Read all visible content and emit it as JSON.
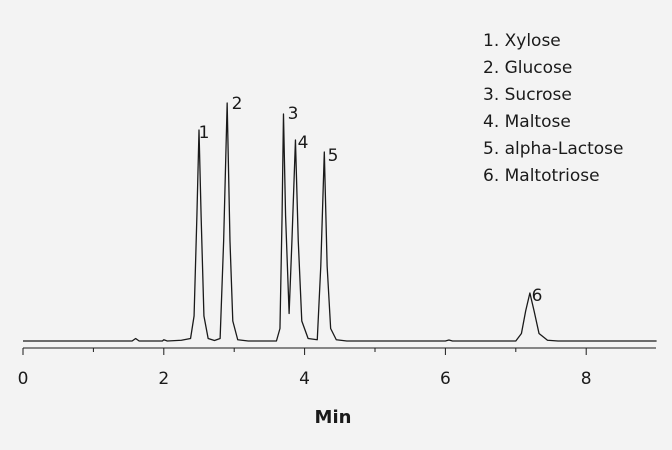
{
  "chart_data": {
    "type": "line",
    "xlabel": "Min",
    "x": [
      0,
      1.55,
      1.6,
      1.65,
      1.98,
      2.0,
      2.05,
      2.25,
      2.38,
      2.43,
      2.47,
      2.5,
      2.53,
      2.57,
      2.63,
      2.72,
      2.8,
      2.85,
      2.9,
      2.94,
      2.98,
      3.05,
      3.2,
      3.6,
      3.65,
      3.68,
      3.7,
      3.73,
      3.78,
      3.82,
      3.87,
      3.91,
      3.96,
      4.05,
      4.18,
      4.23,
      4.28,
      4.32,
      4.37,
      4.45,
      4.6,
      6.0,
      6.05,
      6.1,
      7.0,
      7.08,
      7.14,
      7.2,
      7.26,
      7.33,
      7.45,
      7.6,
      9.0
    ],
    "series": [
      {
        "color": "#1a1a1a",
        "values": [
          0,
          0,
          1,
          0,
          0,
          0.5,
          0,
          0.3,
          1,
          10,
          50,
          84.4,
          50,
          10,
          1,
          0.2,
          1,
          40,
          95.2,
          40,
          8,
          0.5,
          0,
          0,
          5,
          50,
          90.8,
          50,
          11,
          40,
          80.4,
          40,
          8,
          1,
          0.5,
          30,
          75.6,
          30,
          5,
          0.5,
          0,
          0,
          0.4,
          0,
          0,
          3,
          12,
          19.2,
          12,
          3,
          0.3,
          0,
          0
        ]
      }
    ],
    "xlim": [
      0,
      9
    ],
    "xticks": [
      0,
      2,
      4,
      6,
      8
    ],
    "xminorticks": [
      1,
      3,
      5,
      7
    ],
    "ylim": [
      0,
      100
    ],
    "peak_labels": [
      "1",
      "2",
      "3",
      "4",
      "5",
      "6"
    ],
    "legend": [
      "1. Xylose",
      "2. Glucose",
      "3. Sucrose",
      "4. Maltose",
      "5. alpha-Lactose",
      "6. Maltotriose"
    ]
  }
}
